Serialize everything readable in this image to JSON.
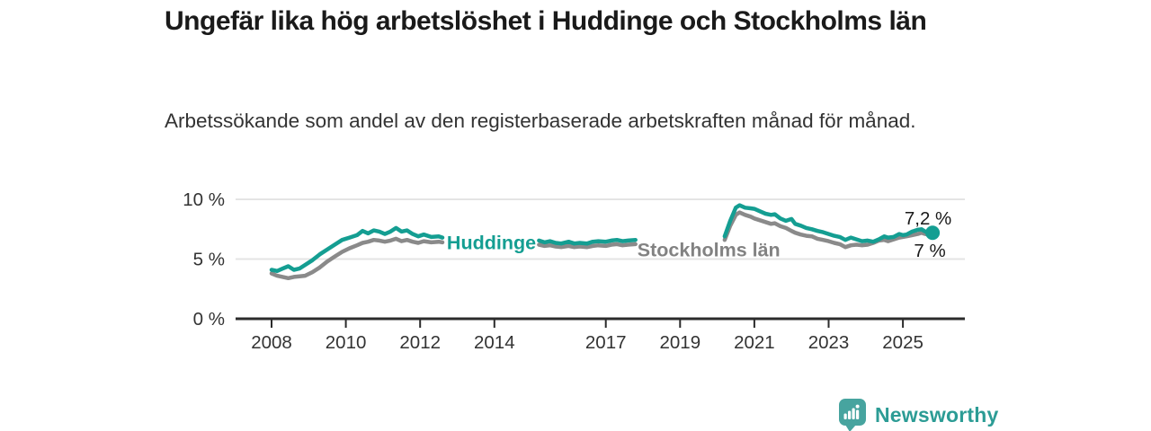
{
  "chart_data": {
    "type": "line",
    "title": "Ungefär lika hög arbetslöshet i Huddinge och Stockholms län",
    "subtitle": "Arbetssökande som andel av den registerbaserade arbetskraften månad för månad.",
    "unit": "%",
    "ylim": [
      0,
      10.6
    ],
    "grid": "horizontal",
    "legend_position": "inline-on-line",
    "yticks": [
      {
        "value": 0,
        "label": "0 %"
      },
      {
        "value": 5,
        "label": "5 %"
      },
      {
        "value": 10,
        "label": "10 %"
      }
    ],
    "xticks": [
      {
        "value": 2008,
        "label": "2008"
      },
      {
        "value": 2010,
        "label": "2010"
      },
      {
        "value": 2012,
        "label": "2012"
      },
      {
        "value": 2014,
        "label": "2014"
      },
      {
        "value": 2017,
        "label": "2017"
      },
      {
        "value": 2019,
        "label": "2019"
      },
      {
        "value": 2021,
        "label": "2021"
      },
      {
        "value": 2023,
        "label": "2023"
      },
      {
        "value": 2025,
        "label": "2025"
      }
    ],
    "colors": {
      "axis": "#2b2b2b",
      "gridline": "#e4e4e4",
      "tick_text": "#333333",
      "end_label_text": "#1a1a1a"
    },
    "series": [
      {
        "name": "Huddinge",
        "color": "#149E92",
        "label_color": "#149E92",
        "end_label": "7,2 %",
        "end_value": 7.2,
        "label_pos": {
          "x": 2012.72,
          "y": 6.35
        },
        "segments": [
          {
            "x": [
              2008.0,
              2008.15,
              2008.3,
              2008.45,
              2008.6,
              2008.75,
              2008.9,
              2009.1,
              2009.3,
              2009.5,
              2009.7,
              2009.9,
              2010.1,
              2010.3,
              2010.45,
              2010.6,
              2010.75,
              2010.9,
              2011.05,
              2011.2,
              2011.35,
              2011.5,
              2011.65,
              2011.8,
              2011.95,
              2012.1,
              2012.3,
              2012.5,
              2012.6
            ],
            "y": [
              4.1,
              4.0,
              4.2,
              4.4,
              4.1,
              4.2,
              4.5,
              4.9,
              5.4,
              5.8,
              6.2,
              6.6,
              6.8,
              7.0,
              7.35,
              7.15,
              7.4,
              7.3,
              7.1,
              7.3,
              7.6,
              7.3,
              7.4,
              7.1,
              6.9,
              7.05,
              6.85,
              6.9,
              6.8
            ]
          },
          {
            "x": [
              2015.2,
              2015.35,
              2015.5,
              2015.65,
              2015.8,
              2016.0,
              2016.15,
              2016.3,
              2016.5,
              2016.65,
              2016.8,
              2017.0,
              2017.15,
              2017.3,
              2017.45,
              2017.6,
              2017.8
            ],
            "y": [
              6.55,
              6.4,
              6.5,
              6.35,
              6.3,
              6.45,
              6.3,
              6.35,
              6.3,
              6.45,
              6.5,
              6.45,
              6.55,
              6.6,
              6.5,
              6.55,
              6.6
            ]
          },
          {
            "x": [
              2020.2,
              2020.35,
              2020.5,
              2020.6,
              2020.75,
              2020.9,
              2021.0,
              2021.15,
              2021.3,
              2021.45,
              2021.55,
              2021.7,
              2021.85,
              2022.0,
              2022.1,
              2022.25,
              2022.4,
              2022.55,
              2022.7,
              2022.85,
              2023.0,
              2023.15,
              2023.3,
              2023.45,
              2023.6,
              2023.75,
              2023.9,
              2024.05,
              2024.2,
              2024.35,
              2024.5,
              2024.6,
              2024.75,
              2024.9,
              2025.0,
              2025.1,
              2025.25,
              2025.4,
              2025.5,
              2025.6,
              2025.75
            ],
            "y": [
              6.9,
              8.2,
              9.3,
              9.5,
              9.3,
              9.25,
              9.2,
              9.0,
              8.8,
              8.7,
              8.75,
              8.4,
              8.2,
              8.35,
              7.95,
              7.8,
              7.6,
              7.5,
              7.35,
              7.25,
              7.1,
              6.95,
              6.85,
              6.6,
              6.8,
              6.65,
              6.5,
              6.55,
              6.45,
              6.65,
              6.9,
              6.8,
              6.85,
              7.1,
              7.0,
              7.05,
              7.3,
              7.45,
              7.5,
              7.3,
              7.2
            ]
          }
        ]
      },
      {
        "name": "Stockholms län",
        "color": "#8A8A8A",
        "label_color": "#828282",
        "end_label": "7 %",
        "end_value": 7.0,
        "label_pos": {
          "x": 2017.85,
          "y": 5.75
        },
        "segments": [
          {
            "x": [
              2008.0,
              2008.15,
              2008.3,
              2008.45,
              2008.6,
              2008.75,
              2008.9,
              2009.1,
              2009.3,
              2009.5,
              2009.7,
              2009.9,
              2010.1,
              2010.3,
              2010.45,
              2010.6,
              2010.75,
              2010.9,
              2011.05,
              2011.2,
              2011.35,
              2011.5,
              2011.65,
              2011.8,
              2011.95,
              2012.1,
              2012.3,
              2012.5,
              2012.6
            ],
            "y": [
              3.8,
              3.6,
              3.5,
              3.4,
              3.5,
              3.55,
              3.6,
              3.9,
              4.3,
              4.8,
              5.2,
              5.6,
              5.9,
              6.15,
              6.35,
              6.45,
              6.6,
              6.55,
              6.45,
              6.55,
              6.7,
              6.5,
              6.6,
              6.45,
              6.35,
              6.5,
              6.4,
              6.45,
              6.4
            ]
          },
          {
            "x": [
              2015.2,
              2015.35,
              2015.5,
              2015.65,
              2015.8,
              2016.0,
              2016.15,
              2016.3,
              2016.5,
              2016.65,
              2016.8,
              2017.0,
              2017.15,
              2017.3,
              2017.45,
              2017.6,
              2017.8
            ],
            "y": [
              6.2,
              6.1,
              6.15,
              6.05,
              6.0,
              6.1,
              6.0,
              6.05,
              6.0,
              6.1,
              6.15,
              6.1,
              6.2,
              6.25,
              6.15,
              6.2,
              6.25
            ]
          },
          {
            "x": [
              2020.2,
              2020.35,
              2020.5,
              2020.6,
              2020.75,
              2020.9,
              2021.0,
              2021.15,
              2021.3,
              2021.45,
              2021.55,
              2021.7,
              2021.85,
              2022.0,
              2022.1,
              2022.25,
              2022.4,
              2022.55,
              2022.7,
              2022.85,
              2023.0,
              2023.15,
              2023.3,
              2023.45,
              2023.6,
              2023.75,
              2023.9,
              2024.05,
              2024.2,
              2024.35,
              2024.5,
              2024.6,
              2024.75,
              2024.9,
              2025.0,
              2025.1,
              2025.25,
              2025.4,
              2025.5,
              2025.6,
              2025.75
            ],
            "y": [
              6.6,
              7.8,
              8.7,
              8.9,
              8.7,
              8.55,
              8.4,
              8.25,
              8.1,
              7.95,
              8.0,
              7.75,
              7.6,
              7.35,
              7.2,
              7.05,
              6.95,
              6.9,
              6.7,
              6.6,
              6.5,
              6.35,
              6.25,
              6.0,
              6.15,
              6.2,
              6.15,
              6.2,
              6.35,
              6.55,
              6.6,
              6.5,
              6.65,
              6.8,
              6.85,
              6.9,
              7.0,
              7.1,
              7.2,
              7.1,
              7.0
            ]
          }
        ]
      }
    ]
  },
  "footer": {
    "brand": "Newsworthy",
    "logo_color": "#47A49F"
  }
}
